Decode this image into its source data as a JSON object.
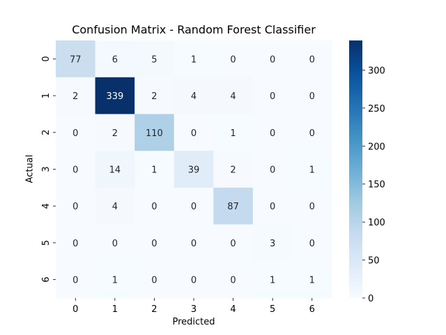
{
  "chart_data": {
    "type": "heatmap",
    "title": "Confusion Matrix - Random Forest Classifier",
    "xlabel": "Predicted",
    "ylabel": "Actual",
    "x_categories": [
      "0",
      "1",
      "2",
      "3",
      "4",
      "5",
      "6"
    ],
    "y_categories": [
      "0",
      "1",
      "2",
      "3",
      "4",
      "5",
      "6"
    ],
    "values": [
      [
        77,
        6,
        5,
        1,
        0,
        0,
        0
      ],
      [
        2,
        339,
        2,
        4,
        4,
        0,
        0
      ],
      [
        0,
        2,
        110,
        0,
        1,
        0,
        0
      ],
      [
        0,
        14,
        1,
        39,
        2,
        0,
        1
      ],
      [
        0,
        4,
        0,
        0,
        87,
        0,
        0
      ],
      [
        0,
        0,
        0,
        0,
        0,
        3,
        0
      ],
      [
        0,
        1,
        0,
        0,
        0,
        1,
        1
      ]
    ],
    "colorbar": {
      "range": [
        0,
        339
      ],
      "ticks": [
        0,
        50,
        100,
        150,
        200,
        250,
        300
      ],
      "colormap": "Blues",
      "stops": [
        "#f7fbff",
        "#deebf7",
        "#c6dbef",
        "#9ecae1",
        "#6baed6",
        "#4292c6",
        "#2171b5",
        "#08519c",
        "#08306b"
      ]
    },
    "text_color_light": "#ffffff",
    "text_color_dark": "#262626"
  }
}
